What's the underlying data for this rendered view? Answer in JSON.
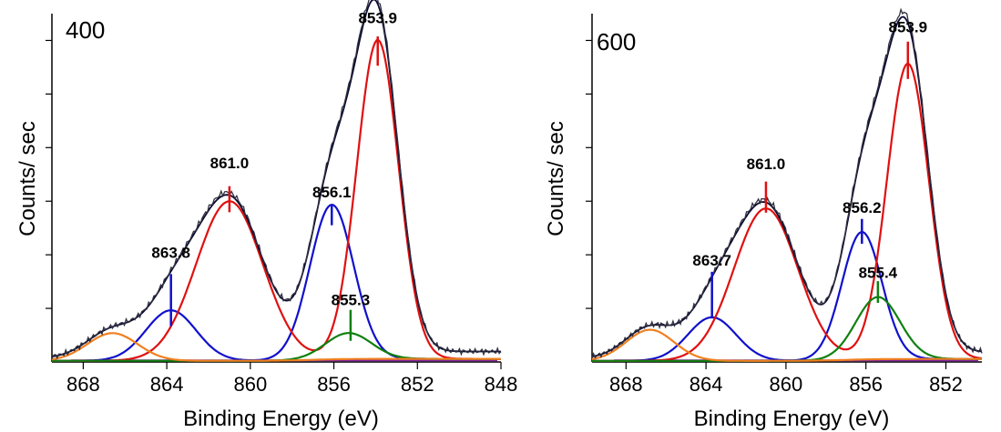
{
  "chart_data": [
    {
      "type": "line",
      "panel_label": "400",
      "xlabel": "Binding Energy (eV)",
      "ylabel": "Counts/ sec",
      "xlim": [
        869.5,
        848
      ],
      "x_reversed": true,
      "ylim": [
        0,
        1.07
      ],
      "xticks": [
        868,
        864,
        860,
        856,
        852,
        848
      ],
      "xtick_labels": [
        "868",
        "864",
        "860",
        "856",
        "852",
        "848"
      ],
      "grid": false,
      "series": [
        {
          "color": "#1010cc",
          "peaks": [
            {
              "center": 863.8,
              "height": 0.155,
              "width": 1.2
            },
            {
              "center": 856.1,
              "height": 0.475,
              "width": 1.05
            }
          ]
        },
        {
          "color": "#e01010",
          "peaks": [
            {
              "center": 861.0,
              "height": 0.49,
              "width": 1.6
            },
            {
              "center": 853.9,
              "height": 0.98,
              "width": 1.0
            }
          ]
        },
        {
          "color": "#108010",
          "peaks": [
            {
              "center": 855.3,
              "height": 0.08,
              "width": 1.1
            }
          ]
        },
        {
          "color": "#f08020",
          "peaks": [
            {
              "center": 866.6,
              "height": 0.085,
              "width": 1.2
            }
          ]
        },
        {
          "color": "#0a0a30",
          "peaks": []
        }
      ],
      "peak_labels": [
        {
          "text": "853.9",
          "x": 853.9,
          "color": "#e01010",
          "tick_top": 1.0,
          "tick_bottom": 0.91,
          "label_y": 1.04
        },
        {
          "text": "861.0",
          "x": 861.0,
          "color": "#e01010",
          "tick_top": 0.54,
          "tick_bottom": 0.46,
          "label_y": 0.595
        },
        {
          "text": "856.1",
          "x": 856.1,
          "color": "#1010cc",
          "tick_top": 0.48,
          "tick_bottom": 0.42,
          "label_y": 0.505
        },
        {
          "text": "863.8",
          "x": 863.8,
          "color": "#1010cc",
          "tick_top": 0.27,
          "tick_bottom": 0.11,
          "label_y": 0.32
        },
        {
          "text": "855.3",
          "x": 855.2,
          "color": "#108010",
          "tick_top": 0.16,
          "tick_bottom": 0.065,
          "label_y": 0.175
        }
      ]
    },
    {
      "type": "line",
      "panel_label": "600",
      "xlabel": "Binding Energy (eV)",
      "ylabel": "Counts/ sec",
      "xlim": [
        869.7,
        850.2
      ],
      "x_reversed": true,
      "ylim": [
        0,
        1.12
      ],
      "xticks": [
        868,
        864,
        860,
        856,
        852
      ],
      "xtick_labels": [
        "868",
        "864",
        "860",
        "856",
        "852"
      ],
      "grid": false,
      "series": [
        {
          "color": "#1010cc",
          "peaks": [
            {
              "center": 863.7,
              "height": 0.14,
              "width": 1.2
            },
            {
              "center": 856.2,
              "height": 0.41,
              "width": 1.0
            }
          ]
        },
        {
          "color": "#e01010",
          "peaks": [
            {
              "center": 861.0,
              "height": 0.49,
              "width": 1.6
            },
            {
              "center": 853.9,
              "height": 0.95,
              "width": 1.05
            }
          ]
        },
        {
          "color": "#108010",
          "peaks": [
            {
              "center": 855.4,
              "height": 0.2,
              "width": 1.1
            }
          ]
        },
        {
          "color": "#f08020",
          "peaks": [
            {
              "center": 866.8,
              "height": 0.1,
              "width": 1.2
            }
          ]
        },
        {
          "color": "#0a0a30",
          "peaks": []
        }
      ],
      "peak_labels": [
        {
          "text": "853.9",
          "x": 853.9,
          "color": "#e01010",
          "tick_top": 1.03,
          "tick_bottom": 0.91,
          "label_y": 1.06
        },
        {
          "text": "861.0",
          "x": 861.0,
          "color": "#e01010",
          "tick_top": 0.58,
          "tick_bottom": 0.48,
          "label_y": 0.62
        },
        {
          "text": "856.2",
          "x": 856.2,
          "color": "#1010cc",
          "tick_top": 0.46,
          "tick_bottom": 0.38,
          "label_y": 0.48
        },
        {
          "text": "863.7",
          "x": 863.7,
          "color": "#1010cc",
          "tick_top": 0.29,
          "tick_bottom": 0.14,
          "label_y": 0.31
        },
        {
          "text": "855.4",
          "x": 855.4,
          "color": "#108010",
          "tick_top": 0.26,
          "tick_bottom": 0.19,
          "label_y": 0.27
        }
      ]
    }
  ]
}
